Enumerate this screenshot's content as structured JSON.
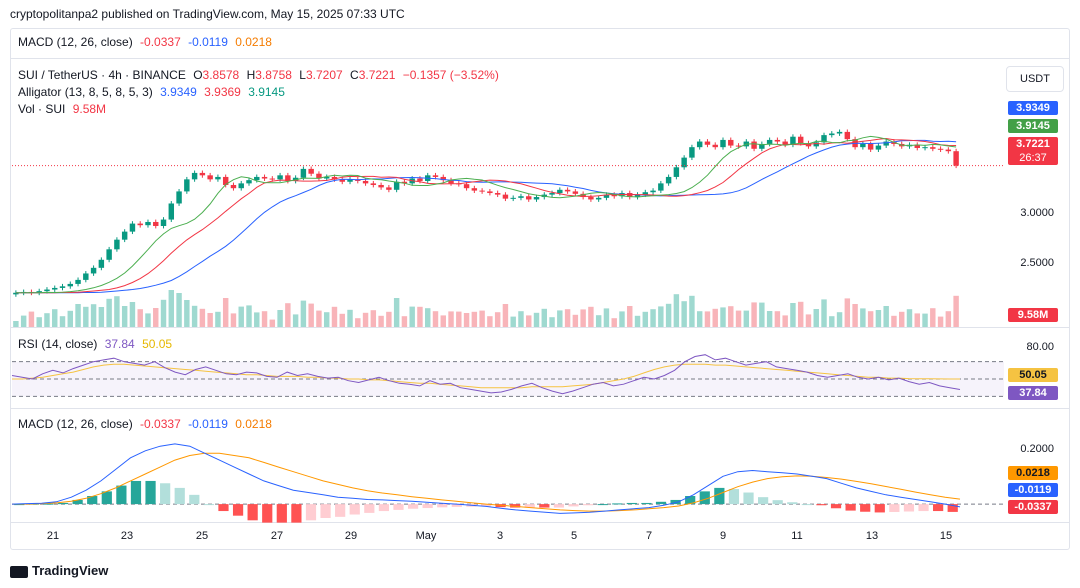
{
  "header": {
    "published": "cryptopolitanpa2 published on TradingView.com, May 15, 2025 07:33 UTC"
  },
  "top_macd": {
    "label": "MACD (12, 26, close)",
    "v1": "-0.0337",
    "v2": "-0.0119",
    "v3": "0.0218"
  },
  "price_legend": {
    "symbol": "SUI / TetherUS · 4h · BINANCE",
    "o_label": "O",
    "o": "3.8578",
    "h_label": "H",
    "h": "3.8758",
    "l_label": "L",
    "l": "3.7207",
    "c_label": "C",
    "c": "3.7221",
    "change": "−0.1357 (−3.52%)",
    "alligator_label": "Alligator (13, 8, 5, 8, 5, 3)",
    "jaw": "3.9349",
    "teeth": "3.9369",
    "lips": "3.9145",
    "vol_label": "Vol · SUI",
    "vol": "9.58M"
  },
  "rsi_legend": {
    "label": "RSI (14, close)",
    "v1": "37.84",
    "v2": "50.05"
  },
  "macd_legend": {
    "label": "MACD (12, 26, close)",
    "v1": "-0.0337",
    "v2": "-0.0119",
    "v3": "0.0218"
  },
  "currency_button": "USDT",
  "price_axis": {
    "ticks": [
      "3.0000",
      "2.5000"
    ]
  },
  "price_badges": {
    "jaw": "3.9349",
    "lips": "3.9145",
    "last": "3.7221",
    "countdown": "26:37",
    "vol": "9.58M"
  },
  "rsi_axis": {
    "tick": "80.00",
    "badge_ma": "50.05",
    "badge_rsi": "37.84"
  },
  "macd_axis": {
    "tick": "0.2000",
    "badge_signal": "0.0218",
    "badge_macd": "-0.0119",
    "badge_hist": "-0.0337"
  },
  "x_axis": {
    "labels": [
      "21",
      "23",
      "25",
      "27",
      "29",
      "May",
      "3",
      "5",
      "7",
      "9",
      "11",
      "13",
      "15"
    ]
  },
  "footer": {
    "brand": "TradingView"
  },
  "colors": {
    "up": "#089981",
    "down": "#f23645",
    "jaw": "#2962ff",
    "teeth": "#f23645",
    "lips": "#4caf50",
    "rsi": "#7e57c2",
    "rsi_ma": "#f5c342",
    "macd": "#2962ff",
    "signal": "#ff9800"
  },
  "chart_data": {
    "type": "candlestick",
    "symbol": "SUI / TetherUS",
    "interval": "4h",
    "x_labels": [
      "21",
      "23",
      "25",
      "27",
      "29",
      "May",
      "3",
      "5",
      "7",
      "9",
      "11",
      "13",
      "15"
    ],
    "close_series": [
      2.14,
      2.15,
      2.14,
      2.16,
      2.18,
      2.2,
      2.22,
      2.25,
      2.3,
      2.38,
      2.45,
      2.55,
      2.68,
      2.8,
      2.9,
      3.0,
      2.98,
      3.02,
      2.97,
      3.05,
      3.25,
      3.4,
      3.55,
      3.63,
      3.6,
      3.55,
      3.58,
      3.48,
      3.44,
      3.5,
      3.54,
      3.58,
      3.56,
      3.55,
      3.6,
      3.53,
      3.57,
      3.68,
      3.62,
      3.56,
      3.58,
      3.55,
      3.52,
      3.55,
      3.53,
      3.5,
      3.48,
      3.45,
      3.42,
      3.52,
      3.5,
      3.56,
      3.53,
      3.6,
      3.58,
      3.54,
      3.5,
      3.49,
      3.44,
      3.41,
      3.4,
      3.38,
      3.36,
      3.31,
      3.32,
      3.34,
      3.3,
      3.33,
      3.36,
      3.38,
      3.42,
      3.4,
      3.37,
      3.33,
      3.3,
      3.32,
      3.36,
      3.34,
      3.38,
      3.33,
      3.36,
      3.39,
      3.41,
      3.5,
      3.58,
      3.7,
      3.82,
      3.95,
      4.02,
      3.98,
      3.95,
      4.04,
      3.97,
      3.96,
      4.02,
      3.93,
      3.99,
      4.04,
      4.02,
      3.98,
      4.08,
      4.0,
      3.96,
      4.01,
      4.1,
      4.12,
      4.14,
      4.05,
      3.95,
      3.99,
      3.92,
      3.97,
      4.02,
      3.99,
      3.96,
      3.98,
      3.94,
      3.95,
      3.93,
      3.92,
      3.9,
      3.72
    ],
    "price_range": [
      2.05,
      4.35
    ],
    "jaw_last": 3.9349,
    "teeth_last": 3.9369,
    "lips_last": 3.9145,
    "rsi_series": [
      54,
      52,
      50,
      56,
      60,
      57,
      62,
      66,
      70,
      72,
      74,
      70,
      68,
      66,
      70,
      63,
      58,
      55,
      61,
      64,
      60,
      56,
      55,
      58,
      57,
      53,
      52,
      58,
      54,
      56,
      53,
      51,
      52,
      48,
      46,
      49,
      52,
      48,
      45,
      44,
      42,
      48,
      44,
      45,
      40,
      38,
      36,
      34,
      35,
      38,
      42,
      45,
      40,
      36,
      33,
      36,
      40,
      44,
      46,
      42,
      44,
      48,
      52,
      50,
      54,
      60,
      70,
      76,
      78,
      72,
      74,
      70,
      66,
      68,
      70,
      64,
      62,
      60,
      58,
      54,
      52,
      54,
      56,
      52,
      50,
      52,
      49,
      51,
      47,
      44,
      46,
      42,
      40,
      37.84
    ],
    "rsi_ma_series": [
      50,
      50,
      51,
      52,
      54,
      56,
      58,
      61,
      64,
      66,
      67,
      67,
      66,
      65,
      64,
      63,
      62,
      61,
      60,
      59,
      58,
      57,
      56,
      55,
      55,
      54,
      53,
      53,
      53,
      52,
      52,
      51,
      51,
      50,
      50,
      49,
      49,
      48,
      47,
      46,
      45,
      45,
      44,
      43,
      42,
      41,
      40,
      40,
      40,
      40,
      40,
      41,
      41,
      41,
      41,
      42,
      43,
      44,
      46,
      48,
      50,
      53,
      57,
      61,
      64,
      66,
      67,
      67,
      67,
      66,
      66,
      65,
      64,
      63,
      62,
      61,
      60,
      59,
      58,
      57,
      56,
      55,
      54,
      53,
      52,
      52,
      51,
      51,
      50.5,
      50.3,
      50.2,
      50.1,
      50.05,
      50.05
    ],
    "rsi_range": [
      20,
      95
    ],
    "macd_series": [
      0.0,
      0.002,
      0.004,
      0.01,
      0.03,
      0.06,
      0.1,
      0.15,
      0.2,
      0.23,
      0.25,
      0.26,
      0.25,
      0.22,
      0.19,
      0.16,
      0.13,
      0.1,
      0.08,
      0.06,
      0.05,
      0.04,
      0.03,
      0.025,
      0.02,
      0.018,
      0.015,
      0.012,
      0.008,
      0.004,
      0.0,
      -0.005,
      -0.01,
      -0.018,
      -0.025,
      -0.03,
      -0.035,
      -0.04,
      -0.038,
      -0.035,
      -0.03,
      -0.025,
      -0.02,
      -0.015,
      -0.005,
      0.01,
      0.04,
      0.08,
      0.12,
      0.14,
      0.145,
      0.14,
      0.135,
      0.13,
      0.12,
      0.11,
      0.09,
      0.07,
      0.055,
      0.04,
      0.03,
      0.02,
      0.01,
      0.0,
      -0.0119
    ],
    "signal_series": [
      0.0,
      0.0,
      0.002,
      0.005,
      0.012,
      0.025,
      0.045,
      0.07,
      0.1,
      0.13,
      0.16,
      0.19,
      0.21,
      0.22,
      0.22,
      0.21,
      0.2,
      0.18,
      0.16,
      0.14,
      0.12,
      0.1,
      0.085,
      0.07,
      0.058,
      0.048,
      0.04,
      0.032,
      0.025,
      0.018,
      0.012,
      0.006,
      0.0,
      -0.005,
      -0.01,
      -0.015,
      -0.02,
      -0.025,
      -0.028,
      -0.03,
      -0.03,
      -0.028,
      -0.025,
      -0.02,
      -0.015,
      -0.008,
      0.005,
      0.025,
      0.05,
      0.075,
      0.095,
      0.11,
      0.118,
      0.122,
      0.12,
      0.115,
      0.108,
      0.098,
      0.088,
      0.076,
      0.064,
      0.052,
      0.04,
      0.03,
      0.0218
    ],
    "macd_range": [
      -0.06,
      0.32
    ]
  }
}
